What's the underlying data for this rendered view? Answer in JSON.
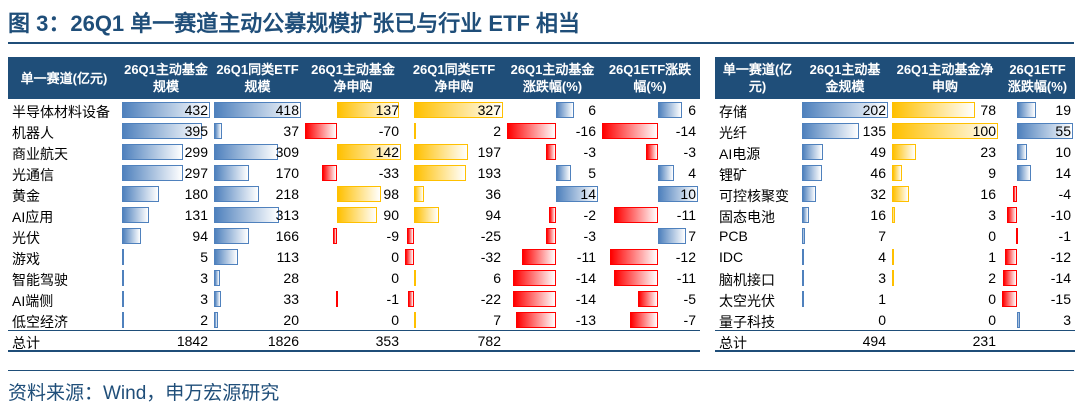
{
  "title": "图 3：26Q1 单一赛道主动公募规模扩张已与行业 ETF 相当",
  "palette": {
    "blue": "#4f81bd",
    "yellow": "#ffc000",
    "red": "#ff0000"
  },
  "tables": [
    {
      "header": [
        "单一赛道(亿元)",
        "26Q1主动基金规模",
        "26Q1同类ETF规模",
        "26Q1主动基金净申购",
        "26Q1同类ETF净申购",
        "26Q1主动基金涨跌幅(%)",
        "26Q1ETF涨跌幅(%)"
      ],
      "bar_colors": [
        "blue",
        "blue",
        "yellow",
        "yellow",
        "blue",
        "blue"
      ],
      "rows": [
        {
          "name": "半导体材料设备",
          "values": [
            432,
            418,
            137,
            327,
            6,
            6
          ]
        },
        {
          "name": "机器人",
          "values": [
            395,
            37,
            -70,
            2,
            -16,
            -14
          ]
        },
        {
          "name": "商业航天",
          "values": [
            299,
            309,
            142,
            197,
            -3,
            -3
          ]
        },
        {
          "name": "光通信",
          "values": [
            297,
            170,
            -33,
            193,
            5,
            4
          ]
        },
        {
          "name": "黄金",
          "values": [
            180,
            218,
            98,
            36,
            14,
            10
          ]
        },
        {
          "name": "AI应用",
          "values": [
            131,
            313,
            90,
            94,
            -2,
            -11
          ]
        },
        {
          "name": "光伏",
          "values": [
            94,
            166,
            -9,
            -25,
            -3,
            7
          ]
        },
        {
          "name": "游戏",
          "values": [
            5,
            113,
            0,
            -32,
            -11,
            -12
          ]
        },
        {
          "name": "智能驾驶",
          "values": [
            3,
            28,
            0,
            6,
            -14,
            -11
          ]
        },
        {
          "name": "AI端侧",
          "values": [
            3,
            33,
            -1,
            -22,
            -14,
            -5
          ]
        },
        {
          "name": "低空经济",
          "values": [
            2,
            20,
            0,
            7,
            -13,
            -7
          ]
        }
      ],
      "total": {
        "name": "总计",
        "values": [
          1842,
          1826,
          353,
          782
        ]
      }
    },
    {
      "header": [
        "单一赛道(亿元)",
        "26Q1主动基金规模",
        "26Q1主动基金净申购",
        "26Q1ETF涨跌幅(%)"
      ],
      "bar_colors": [
        "blue",
        "yellow",
        "blue"
      ],
      "rows": [
        {
          "name": "存储",
          "values": [
            202,
            78,
            19
          ]
        },
        {
          "name": "光纤",
          "values": [
            135,
            100,
            55
          ]
        },
        {
          "name": "AI电源",
          "values": [
            49,
            23,
            10
          ]
        },
        {
          "name": "锂矿",
          "values": [
            46,
            9,
            14
          ]
        },
        {
          "name": "可控核聚变",
          "values": [
            32,
            16,
            -4
          ]
        },
        {
          "name": "固态电池",
          "values": [
            16,
            3,
            -10
          ]
        },
        {
          "name": "PCB",
          "values": [
            7,
            0,
            -1
          ]
        },
        {
          "name": "IDC",
          "values": [
            4,
            1,
            -12
          ]
        },
        {
          "name": "脑机接口",
          "values": [
            3,
            2,
            -14
          ]
        },
        {
          "name": "太空光伏",
          "values": [
            1,
            0,
            -15
          ]
        },
        {
          "name": "量子科技",
          "values": [
            0,
            0,
            3
          ]
        }
      ],
      "total": {
        "name": "总计",
        "values": [
          494,
          231
        ]
      }
    }
  ],
  "source": "资料来源：Wind，申万宏源研究"
}
